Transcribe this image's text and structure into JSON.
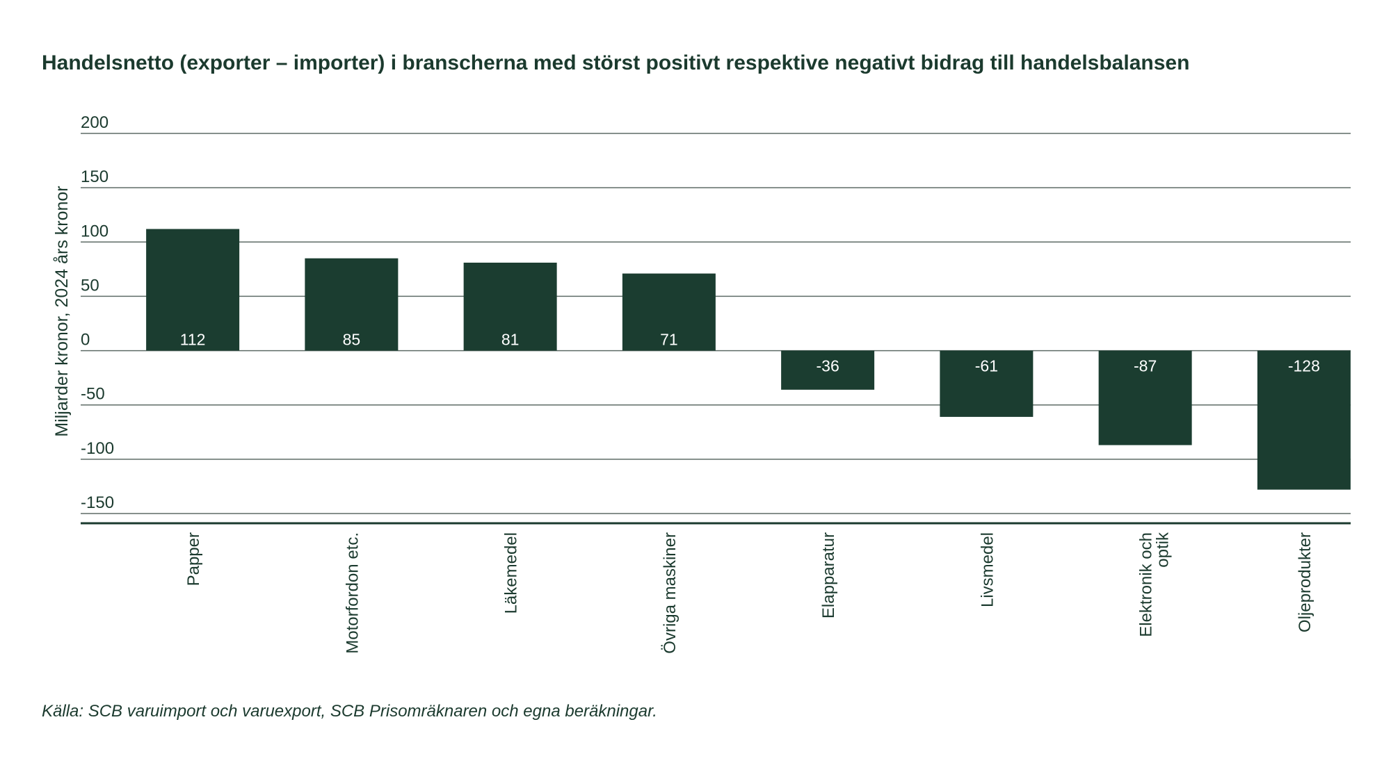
{
  "title": "Handelsnetto (exporter – importer) i branscherna med störst positivt respektive negativt bidrag till handelsbalansen",
  "source": "Källa:  SCB varuimport och varuexport, SCB Prisomräknaren och egna beräkningar.",
  "colors": {
    "bar": "#1b3d30",
    "text": "#1b3a2e",
    "grid": "#5e6b66",
    "bar_label": "#ffffff"
  },
  "chart_data": {
    "type": "bar",
    "categories": [
      "Papper",
      "Motorfordon etc.",
      "Läkemedel",
      "Övriga maskiner",
      "Elapparatur",
      "Livsmedel",
      "Elektronik och optik",
      "Oljeprodukter"
    ],
    "category_label_lines": [
      [
        "Papper"
      ],
      [
        "Motorfordon etc."
      ],
      [
        "Läkemedel"
      ],
      [
        "Övriga maskiner"
      ],
      [
        "Elapparatur"
      ],
      [
        "Livsmedel"
      ],
      [
        "Elektronik och",
        "optik"
      ],
      [
        "Oljeprodukter"
      ]
    ],
    "values": [
      112,
      85,
      81,
      71,
      -36,
      -61,
      -87,
      -128
    ],
    "data_labels": [
      "112",
      "85",
      "81",
      "71",
      "-36",
      "-61",
      "-87",
      "-128"
    ],
    "ylabel": "Miljarder kronor, 2024 års kronor",
    "ylim": [
      -150,
      200
    ],
    "yticks": [
      200,
      150,
      100,
      50,
      0,
      -50,
      -100,
      -150
    ],
    "ytick_labels": [
      "200",
      "150",
      "100",
      "50",
      "0",
      "-50",
      "-100",
      "-150"
    ],
    "grid": true,
    "legend": "none"
  }
}
